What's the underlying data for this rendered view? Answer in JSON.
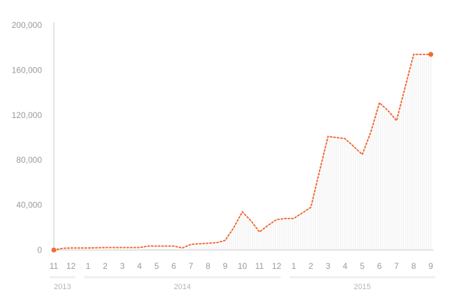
{
  "chart_data": {
    "type": "line",
    "title": "",
    "xlabel": "",
    "ylabel": "",
    "ylim": [
      0,
      200000
    ],
    "yticks": [
      "0",
      "40,000",
      "80,000",
      "120,000",
      "160,000",
      "200,000"
    ],
    "ytick_values": [
      0,
      40000,
      80000,
      120000,
      160000,
      200000
    ],
    "categories": [
      "11",
      "12",
      "1",
      "2",
      "3",
      "4",
      "5",
      "6",
      "7",
      "8",
      "9",
      "10",
      "11",
      "12",
      "1",
      "2",
      "3",
      "4",
      "5",
      "6",
      "7",
      "8",
      "9"
    ],
    "years": [
      {
        "label": "2013",
        "start": 0,
        "end": 1
      },
      {
        "label": "2014",
        "start": 2,
        "end": 13
      },
      {
        "label": "2015",
        "start": 14,
        "end": 22
      }
    ],
    "x": [
      0,
      0.5,
      1,
      1.5,
      2,
      2.5,
      3,
      3.5,
      4,
      4.5,
      5,
      5.5,
      6,
      6.5,
      7,
      7.5,
      8,
      8.5,
      9,
      9.5,
      10,
      10.5,
      11,
      11.5,
      12,
      12.5,
      13,
      13.5,
      14,
      14.5,
      15,
      15.5,
      16,
      16.5,
      17,
      17.5,
      18,
      18.5,
      19,
      19.5,
      20,
      20.5,
      21,
      21.5,
      22
    ],
    "values": [
      0,
      1500,
      1800,
      1800,
      1800,
      2000,
      2200,
      2200,
      2200,
      2200,
      2200,
      3500,
      3500,
      3500,
      3500,
      1800,
      5000,
      5500,
      6000,
      6500,
      8500,
      20000,
      34000,
      26000,
      16000,
      22000,
      27000,
      28000,
      28000,
      33000,
      38000,
      70000,
      101000,
      100000,
      99000,
      92000,
      85000,
      105000,
      131000,
      124000,
      115000,
      145000,
      174000,
      174000,
      174000
    ],
    "series_color": "#f06a35",
    "grid": false
  }
}
